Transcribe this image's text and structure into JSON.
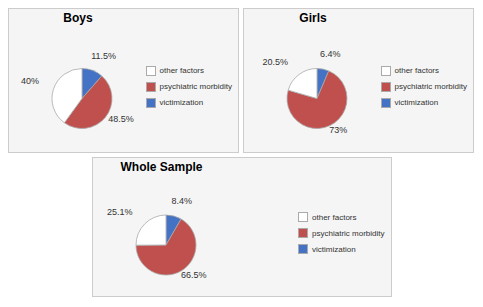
{
  "chart_data": [
    {
      "type": "pie",
      "title": "Boys",
      "categories": [
        "victimization",
        "psychiatric morbidity",
        "other factors"
      ],
      "values": [
        11.5,
        48.5,
        40
      ],
      "value_labels": [
        "11.5%",
        "48.5%",
        "40%"
      ],
      "colors": [
        "#4472C4",
        "#C0504D",
        "#FFFFFF"
      ],
      "data_labels": true,
      "legend": "right"
    },
    {
      "type": "pie",
      "title": "Girls",
      "categories": [
        "victimization",
        "psychiatric morbidity",
        "other factors"
      ],
      "values": [
        6.4,
        73.0,
        20.5
      ],
      "value_labels": [
        "6.4%",
        "73%",
        "20.5%"
      ],
      "colors": [
        "#4472C4",
        "#C0504D",
        "#FFFFFF"
      ],
      "data_labels": true,
      "legend": "right"
    },
    {
      "type": "pie",
      "title": "Whole Sample",
      "categories": [
        "victimization",
        "psychiatric morbidity",
        "other factors"
      ],
      "values": [
        8.4,
        66.5,
        25.1
      ],
      "value_labels": [
        "8.4%",
        "66.5%",
        "25.1%"
      ],
      "colors": [
        "#4472C4",
        "#C0504D",
        "#FFFFFF"
      ],
      "data_labels": true,
      "legend": "right"
    }
  ]
}
